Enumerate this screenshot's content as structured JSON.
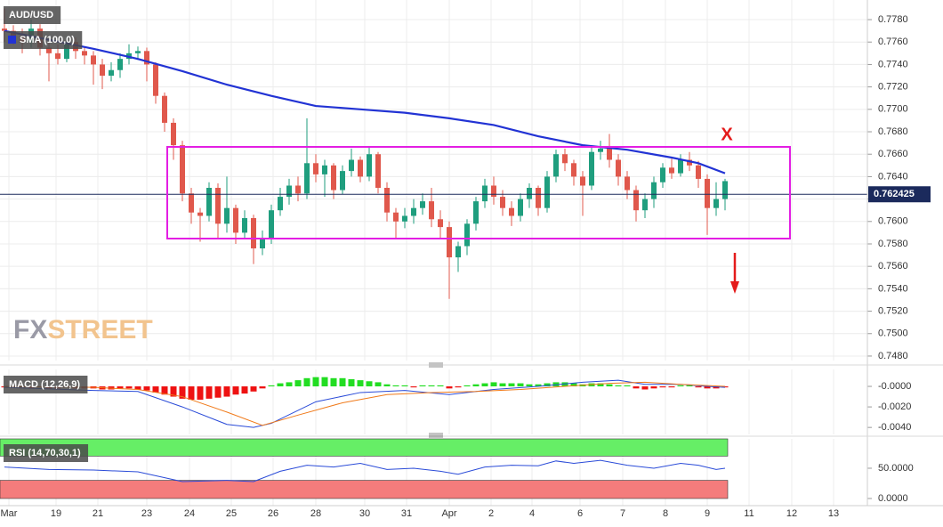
{
  "chart_data": [
    {
      "type": "candlestick",
      "title": "AUD/USD",
      "watermark": [
        "FX",
        "STREET"
      ],
      "annotation": "X",
      "xlim": [
        -0.5,
        97
      ],
      "xticks": [
        {
          "value": 0.5,
          "label": "Mar"
        },
        {
          "value": 5.8,
          "label": "19"
        },
        {
          "value": 10.5,
          "label": "21"
        },
        {
          "value": 16,
          "label": "23"
        },
        {
          "value": 20.8,
          "label": "24"
        },
        {
          "value": 25.5,
          "label": "25"
        },
        {
          "value": 30.2,
          "label": "26"
        },
        {
          "value": 35,
          "label": "28"
        },
        {
          "value": 40.5,
          "label": "30"
        },
        {
          "value": 45.2,
          "label": "31"
        },
        {
          "value": 50,
          "label": "Apr"
        },
        {
          "value": 54.7,
          "label": "2"
        },
        {
          "value": 59.3,
          "label": "4"
        },
        {
          "value": 64.7,
          "label": "6"
        },
        {
          "value": 69.5,
          "label": "7"
        },
        {
          "value": 74.3,
          "label": "8"
        },
        {
          "value": 79,
          "label": "9"
        },
        {
          "value": 83.7,
          "label": "11"
        },
        {
          "value": 88.5,
          "label": "12"
        },
        {
          "value": 93.2,
          "label": "13"
        }
      ],
      "ylim": [
        0.7476,
        0.77975
      ],
      "yticks": [
        {
          "value": 0.748,
          "label": "0.7480"
        },
        {
          "value": 0.75,
          "label": "0.7500"
        },
        {
          "value": 0.752,
          "label": "0.7520"
        },
        {
          "value": 0.754,
          "label": "0.7540"
        },
        {
          "value": 0.756,
          "label": "0.7560"
        },
        {
          "value": 0.758,
          "label": "0.7580"
        },
        {
          "value": 0.76,
          "label": "0.7600"
        },
        {
          "value": 0.762,
          "label": "0.7620"
        },
        {
          "value": 0.764,
          "label": "0.7640"
        },
        {
          "value": 0.766,
          "label": "0.7660"
        },
        {
          "value": 0.768,
          "label": "0.7680"
        },
        {
          "value": 0.77,
          "label": "0.7700"
        },
        {
          "value": 0.772,
          "label": "0.7720"
        },
        {
          "value": 0.774,
          "label": "0.7740"
        },
        {
          "value": 0.776,
          "label": "0.7760"
        },
        {
          "value": 0.778,
          "label": "0.7780"
        }
      ],
      "grid": true,
      "up_color": "#1f9e7e",
      "down_color": "#e0584c",
      "last_price": 0.762425,
      "last_price_color": "#1b2a5c",
      "candles": {
        "open": [
          0.7772,
          0.777,
          0.7765,
          0.776,
          0.7772,
          0.7755,
          0.775,
          0.7745,
          0.776,
          0.7752,
          0.7748,
          0.774,
          0.773,
          0.7735,
          0.7745,
          0.775,
          0.7752,
          0.774,
          0.7712,
          0.7688,
          0.7668,
          0.7625,
          0.7608,
          0.7605,
          0.763,
          0.7598,
          0.7612,
          0.759,
          0.7603,
          0.7576,
          0.7585,
          0.761,
          0.7622,
          0.7632,
          0.7625,
          0.7652,
          0.7642,
          0.765,
          0.7628,
          0.7645,
          0.7655,
          0.764,
          0.766,
          0.763,
          0.7608,
          0.76,
          0.7605,
          0.7612,
          0.7618,
          0.7602,
          0.7595,
          0.7568,
          0.7578,
          0.7598,
          0.7618,
          0.7632,
          0.7622,
          0.7612,
          0.7605,
          0.762,
          0.763,
          0.7612,
          0.764,
          0.766,
          0.7652,
          0.764,
          0.7632,
          0.7662,
          0.7665,
          0.7655,
          0.764,
          0.7628,
          0.761,
          0.762,
          0.7635,
          0.7648,
          0.7643,
          0.7655,
          0.765,
          0.7638,
          0.7612,
          0.762
        ],
        "high": [
          0.779,
          0.7775,
          0.7772,
          0.778,
          0.7776,
          0.776,
          0.7758,
          0.7765,
          0.7764,
          0.7756,
          0.7752,
          0.7745,
          0.7742,
          0.775,
          0.7758,
          0.7756,
          0.7755,
          0.7742,
          0.7715,
          0.7692,
          0.7672,
          0.763,
          0.7612,
          0.7635,
          0.7634,
          0.764,
          0.7615,
          0.761,
          0.7606,
          0.7592,
          0.7615,
          0.763,
          0.7638,
          0.764,
          0.7692,
          0.766,
          0.7655,
          0.7652,
          0.765,
          0.7665,
          0.7658,
          0.7666,
          0.7662,
          0.7635,
          0.7612,
          0.7612,
          0.762,
          0.7625,
          0.763,
          0.761,
          0.76,
          0.7582,
          0.7602,
          0.7622,
          0.7638,
          0.764,
          0.7628,
          0.7618,
          0.7625,
          0.7634,
          0.7632,
          0.7645,
          0.7664,
          0.7665,
          0.7655,
          0.7645,
          0.7668,
          0.7672,
          0.7678,
          0.766,
          0.7645,
          0.7632,
          0.7625,
          0.764,
          0.7652,
          0.7656,
          0.766,
          0.7662,
          0.7654,
          0.7642,
          0.7635,
          0.7638
        ],
        "low": [
          0.776,
          0.7758,
          0.775,
          0.7755,
          0.7748,
          0.7725,
          0.774,
          0.7742,
          0.7745,
          0.774,
          0.7722,
          0.7718,
          0.7725,
          0.7728,
          0.774,
          0.7744,
          0.7725,
          0.7705,
          0.768,
          0.7655,
          0.7618,
          0.7598,
          0.7582,
          0.76,
          0.7585,
          0.759,
          0.758,
          0.7585,
          0.7562,
          0.757,
          0.758,
          0.7605,
          0.7615,
          0.7618,
          0.762,
          0.7635,
          0.7622,
          0.762,
          0.7624,
          0.764,
          0.7635,
          0.7636,
          0.7625,
          0.76,
          0.7585,
          0.7594,
          0.7598,
          0.7606,
          0.7595,
          0.7585,
          0.7531,
          0.7555,
          0.757,
          0.7592,
          0.7612,
          0.7615,
          0.7605,
          0.7596,
          0.76,
          0.7612,
          0.7605,
          0.7608,
          0.7635,
          0.7645,
          0.7632,
          0.7605,
          0.7628,
          0.7655,
          0.7648,
          0.7632,
          0.762,
          0.76,
          0.7603,
          0.7612,
          0.763,
          0.7638,
          0.764,
          0.7645,
          0.763,
          0.7588,
          0.7605,
          0.761
        ],
        "close": [
          0.777,
          0.7765,
          0.776,
          0.7772,
          0.7755,
          0.775,
          0.7745,
          0.776,
          0.7752,
          0.7748,
          0.774,
          0.773,
          0.7735,
          0.7745,
          0.775,
          0.7752,
          0.774,
          0.7712,
          0.7688,
          0.7668,
          0.7625,
          0.7608,
          0.7605,
          0.763,
          0.7598,
          0.7612,
          0.759,
          0.7603,
          0.7576,
          0.7585,
          0.761,
          0.7622,
          0.7632,
          0.7625,
          0.7652,
          0.7642,
          0.765,
          0.7628,
          0.7645,
          0.7655,
          0.764,
          0.766,
          0.763,
          0.7608,
          0.76,
          0.7605,
          0.7612,
          0.7618,
          0.7602,
          0.7595,
          0.7568,
          0.7578,
          0.7598,
          0.7618,
          0.7632,
          0.7622,
          0.7612,
          0.7605,
          0.762,
          0.763,
          0.7612,
          0.764,
          0.766,
          0.7652,
          0.764,
          0.7632,
          0.7662,
          0.7665,
          0.7655,
          0.764,
          0.7628,
          0.761,
          0.762,
          0.7635,
          0.7648,
          0.7643,
          0.7655,
          0.765,
          0.7638,
          0.7612,
          0.762,
          0.7636
        ]
      },
      "series": [
        {
          "name": "SMA (100,0)",
          "color": "#2233d4",
          "x": [
            0,
            5,
            10,
            15,
            20,
            25,
            30,
            35,
            40,
            45,
            50,
            55,
            60,
            65,
            70,
            75,
            78,
            81
          ],
          "values": [
            0.777,
            0.7762,
            0.7754,
            0.7745,
            0.7734,
            0.7722,
            0.7712,
            0.7703,
            0.77,
            0.7697,
            0.7692,
            0.7686,
            0.7676,
            0.7668,
            0.7664,
            0.7657,
            0.7652,
            0.7643
          ]
        }
      ]
    },
    {
      "type": "macd",
      "title": "MACD (12,26,9)",
      "ylim": [
        -0.00468,
        0.00165
      ],
      "yticks": [
        {
          "value": 0,
          "label": "-0.0000"
        },
        {
          "value": -0.002,
          "label": "-0.0020"
        },
        {
          "value": -0.004,
          "label": "-0.0040"
        }
      ],
      "up_color": "#22dd22",
      "down_color": "#ee1111",
      "histogram": [
        -0.0001,
        -0.0001,
        -0.0001,
        -0.0002,
        -0.0001,
        -0.0002,
        -0.0002,
        -0.0001,
        -0.0002,
        -0.0002,
        -0.0002,
        -0.0003,
        -0.0003,
        -0.0002,
        -0.0002,
        -0.0003,
        -0.0004,
        -0.0006,
        -0.0008,
        -0.001,
        -0.0012,
        -0.0013,
        -0.0013,
        -0.0012,
        -0.0011,
        -0.001,
        -0.0008,
        -0.0007,
        -0.0005,
        -0.0002,
        0.0001,
        0.0003,
        0.0004,
        0.0006,
        0.0008,
        0.0009,
        0.0009,
        0.0008,
        0.0008,
        0.0007,
        0.0006,
        0.0005,
        0.0004,
        0.0002,
        0.0001,
        0.0001,
        -0.0001,
        0.0001,
        0.0001,
        0.0001,
        -0.0002,
        -0.0001,
        0.0001,
        0.0002,
        0.0003,
        0.0004,
        0.0003,
        0.0003,
        0.0003,
        0.0002,
        0.0002,
        0.0003,
        0.0004,
        0.0004,
        0.0003,
        0.0002,
        0.0003,
        0.0003,
        0.0002,
        0.0001,
        0.0001,
        -0.0002,
        -0.0003,
        -0.0002,
        -0.0001,
        -0.0001,
        0.0001,
        0.0001,
        -0.0001,
        -0.0002,
        -0.0002,
        -0.0001
      ],
      "series": [
        {
          "color": "#2a4bd8",
          "x": [
            0,
            10,
            15,
            20,
            25,
            28,
            30,
            35,
            40,
            45,
            50,
            55,
            60,
            65,
            69,
            72,
            76,
            79,
            81
          ],
          "values": [
            -0.0001,
            -0.0004,
            -0.0005,
            -0.002,
            -0.0037,
            -0.004,
            -0.0036,
            -0.0015,
            -0.0006,
            -0.0004,
            -0.0008,
            -0.0003,
            0.0,
            0.0004,
            0.0006,
            0.0002,
            0.0002,
            0.0,
            -0.0001
          ]
        },
        {
          "color": "#f07a1a",
          "x": [
            0,
            10,
            15,
            20,
            25,
            29,
            33,
            38,
            43,
            48,
            53,
            58,
            63,
            68,
            72,
            76,
            81
          ],
          "values": [
            0.0,
            -0.0001,
            -0.0003,
            -0.001,
            -0.0025,
            -0.0038,
            -0.0028,
            -0.0016,
            -0.0008,
            -0.0006,
            -0.0005,
            -0.0003,
            0.0,
            0.0003,
            0.0004,
            0.0002,
            0.0
          ]
        }
      ]
    },
    {
      "type": "line",
      "title": "RSI (14,70,30,1)",
      "ylim": [
        -11.8,
        98.5
      ],
      "yticks": [
        {
          "value": 50,
          "label": "50.0000"
        },
        {
          "value": 0,
          "label": "0.0000"
        }
      ],
      "overbought": 70,
      "oversold": 30,
      "overbought_color": "#66ee66",
      "oversold_color": "#f47c7c",
      "series": [
        {
          "color": "#2a4bd8",
          "x": [
            0,
            5,
            10,
            15,
            20,
            25,
            28,
            31,
            34,
            37,
            40,
            43,
            46,
            49,
            51,
            54,
            57,
            60,
            62,
            64,
            67,
            70,
            73,
            76,
            78,
            80,
            81
          ],
          "values": [
            52,
            48,
            47,
            44,
            28,
            30,
            28,
            45,
            55,
            52,
            58,
            48,
            50,
            45,
            40,
            52,
            55,
            54,
            62,
            58,
            63,
            55,
            50,
            58,
            55,
            48,
            50
          ]
        }
      ]
    }
  ]
}
